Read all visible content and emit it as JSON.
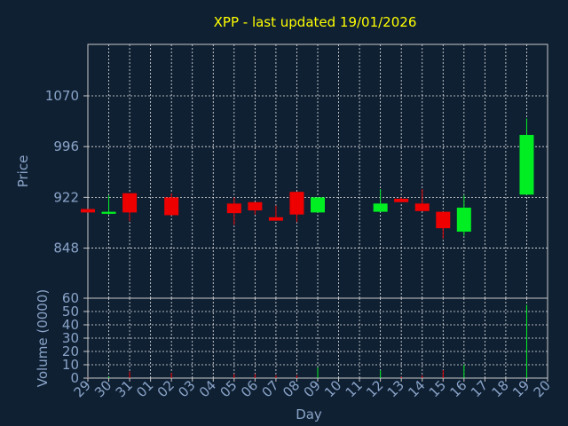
{
  "chart_data": {
    "type": "candlestick",
    "title": "XPP - last updated 19/01/2026",
    "xlabel": "Day",
    "price_panel": {
      "ylabel": "Price",
      "yticks": [
        848,
        922,
        996,
        1070
      ],
      "ylim": [
        775,
        1145
      ]
    },
    "volume_panel": {
      "ylabel": "Volume (0000)",
      "yticks": [
        0,
        10,
        20,
        30,
        40,
        50,
        60
      ],
      "ylim": [
        0,
        60
      ]
    },
    "x_ticks": [
      "29",
      "30",
      "31",
      "01",
      "02",
      "03",
      "04",
      "05",
      "06",
      "07",
      "08",
      "09",
      "10",
      "11",
      "12",
      "13",
      "14",
      "15",
      "16",
      "17",
      "18",
      "19",
      "20"
    ],
    "grid_days": [
      "30",
      "31",
      "01",
      "02",
      "03",
      "04",
      "05",
      "06",
      "07",
      "08",
      "09",
      "10",
      "11",
      "12",
      "13",
      "14",
      "15",
      "16",
      "17",
      "18",
      "19"
    ],
    "candles": [
      {
        "day": "29",
        "open": 905,
        "close": 900,
        "high": 905,
        "low": 900
      },
      {
        "day": "30",
        "open": 898,
        "close": 901,
        "high": 925,
        "low": 897
      },
      {
        "day": "31",
        "open": 928,
        "close": 900,
        "high": 928,
        "low": 887
      },
      {
        "day": "02",
        "open": 922,
        "close": 896,
        "high": 928,
        "low": 896
      },
      {
        "day": "05",
        "open": 913,
        "close": 899,
        "high": 922,
        "low": 882
      },
      {
        "day": "06",
        "open": 915,
        "close": 903,
        "high": 915,
        "low": 897
      },
      {
        "day": "07",
        "open": 893,
        "close": 888,
        "high": 910,
        "low": 888
      },
      {
        "day": "08",
        "open": 930,
        "close": 897,
        "high": 930,
        "low": 886
      },
      {
        "day": "09",
        "open": 900,
        "close": 922,
        "high": 922,
        "low": 900
      },
      {
        "day": "12",
        "open": 901,
        "close": 913,
        "high": 934,
        "low": 901
      },
      {
        "day": "13",
        "open": 920,
        "close": 915,
        "high": 922,
        "low": 915
      },
      {
        "day": "14",
        "open": 913,
        "close": 902,
        "high": 934,
        "low": 902
      },
      {
        "day": "15",
        "open": 901,
        "close": 877,
        "high": 901,
        "low": 862
      },
      {
        "day": "16",
        "open": 872,
        "close": 907,
        "high": 925,
        "low": 866
      },
      {
        "day": "19",
        "open": 926,
        "close": 1013,
        "high": 1037,
        "low": 926
      }
    ],
    "volumes": [
      {
        "day": "29",
        "value": 0.3
      },
      {
        "day": "30",
        "value": 1
      },
      {
        "day": "31",
        "value": 5
      },
      {
        "day": "02",
        "value": 4
      },
      {
        "day": "05",
        "value": 3
      },
      {
        "day": "06",
        "value": 3
      },
      {
        "day": "07",
        "value": 2
      },
      {
        "day": "08",
        "value": 2
      },
      {
        "day": "09",
        "value": 8
      },
      {
        "day": "12",
        "value": 6
      },
      {
        "day": "13",
        "value": 1
      },
      {
        "day": "14",
        "value": 2
      },
      {
        "day": "15",
        "value": 6
      },
      {
        "day": "16",
        "value": 10
      },
      {
        "day": "19",
        "value": 55
      }
    ],
    "up_color": "#00ee22",
    "down_color": "#ee0000",
    "grid": true
  }
}
